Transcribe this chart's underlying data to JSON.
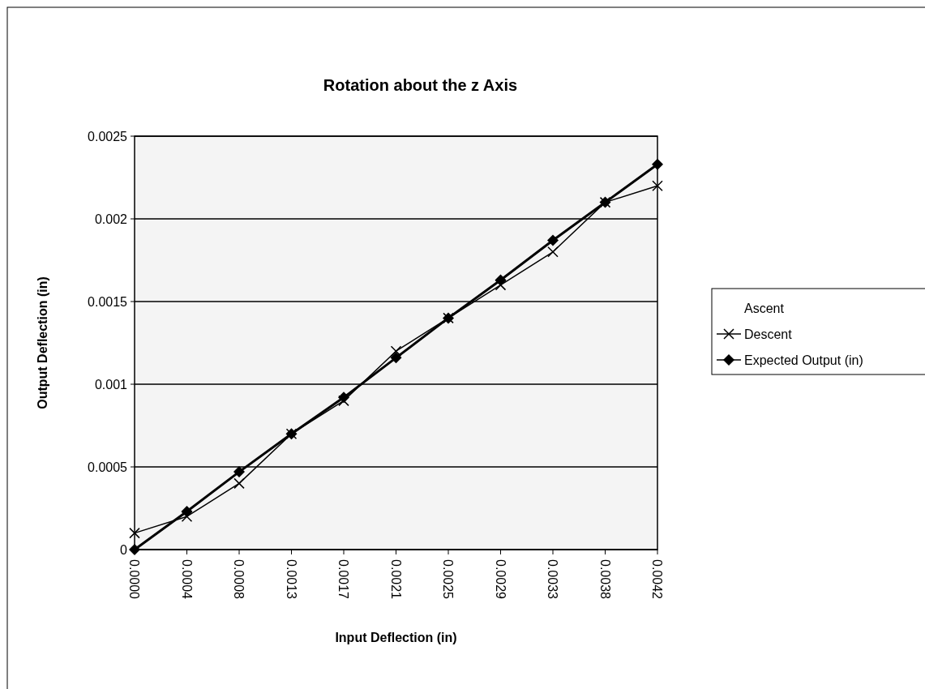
{
  "chart_data": {
    "type": "line",
    "title": "Rotation about the z Axis",
    "xlabel": "Input Deflection (in)",
    "ylabel": "Output Deflection (in)",
    "categories": [
      "0.0000",
      "0.0004",
      "0.0008",
      "0.0013",
      "0.0017",
      "0.0021",
      "0.0025",
      "0.0029",
      "0.0033",
      "0.0038",
      "0.0042"
    ],
    "series": [
      {
        "name": "Ascent",
        "marker": "none",
        "values": [
          null,
          null,
          null,
          null,
          null,
          null,
          null,
          null,
          null,
          null,
          null
        ]
      },
      {
        "name": "Descent",
        "color": "#000000",
        "marker": "cross",
        "values": [
          0.0001,
          0.0002,
          0.0004,
          0.0007,
          0.0009,
          0.0012,
          0.0014,
          0.0016,
          0.0018,
          0.0021,
          0.0022
        ]
      },
      {
        "name": "Expected Output (in)",
        "color": "#000000",
        "marker": "diamond",
        "values": [
          0,
          0.00023,
          0.00047,
          0.0007,
          0.00092,
          0.00116,
          0.0014,
          0.00163,
          0.00187,
          0.0021,
          0.00233
        ]
      }
    ],
    "ylim": [
      0,
      0.0025
    ],
    "yticks": [
      0,
      0.0005,
      0.001,
      0.0015,
      0.002,
      0.0025
    ],
    "grid": "y",
    "legend": "right"
  }
}
